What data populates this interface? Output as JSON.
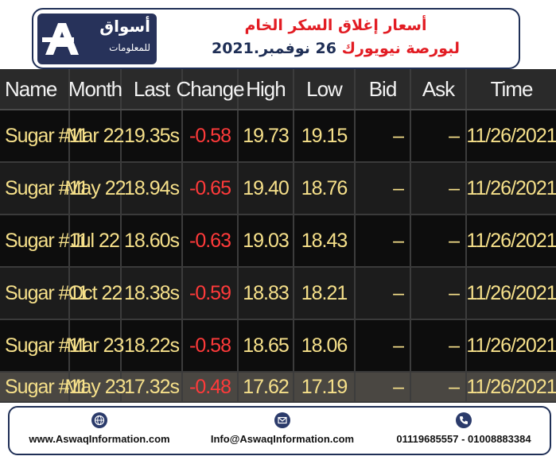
{
  "header": {
    "logo_text": "أسواق",
    "logo_sub": "للمعلومات",
    "title_line1": "أسعار إغلاق السكر الخام",
    "title_line2_red": "لبورصة نيويورك",
    "title_line2_navy": "26 نوفمبر.2021"
  },
  "table": {
    "headers": [
      "Name",
      "Month",
      "Last",
      "Change",
      "High",
      "Low",
      "Bid",
      "Ask",
      "Time"
    ],
    "rows": [
      {
        "name": "Sugar #11",
        "month": "Mar 22",
        "last": "19.35s",
        "change": "-0.58",
        "high": "19.73",
        "low": "19.15",
        "bid": "–",
        "ask": "–",
        "time": "11/26/2021"
      },
      {
        "name": "Sugar #11",
        "month": "May 22",
        "last": "18.94s",
        "change": "-0.65",
        "high": "19.40",
        "low": "18.76",
        "bid": "–",
        "ask": "–",
        "time": "11/26/2021"
      },
      {
        "name": "Sugar #11",
        "month": "Jul 22",
        "last": "18.60s",
        "change": "-0.63",
        "high": "19.03",
        "low": "18.43",
        "bid": "–",
        "ask": "–",
        "time": "11/26/2021"
      },
      {
        "name": "Sugar #11",
        "month": "Oct 22",
        "last": "18.38s",
        "change": "-0.59",
        "high": "18.83",
        "low": "18.21",
        "bid": "–",
        "ask": "–",
        "time": "11/26/2021"
      },
      {
        "name": "Sugar #11",
        "month": "Mar 23",
        "last": "18.22s",
        "change": "-0.58",
        "high": "18.65",
        "low": "18.06",
        "bid": "–",
        "ask": "–",
        "time": "11/26/2021"
      },
      {
        "name": "Sugar #11",
        "month": "May 23",
        "last": "17.32s",
        "change": "-0.48",
        "high": "17.62",
        "low": "17.19",
        "bid": "–",
        "ask": "–",
        "time": "11/26/2021"
      }
    ]
  },
  "footer": {
    "website": "www.AswaqInformation.com",
    "email": "Info@AswaqInformation.com",
    "phones": "01119685557 - 01008883384",
    "icons": [
      "globe-icon",
      "mail-icon",
      "phone-icon"
    ]
  },
  "colors": {
    "navy": "#27325a",
    "title_red": "#e21c23",
    "value_yellow": "#f6e08a",
    "change_red": "#ff3a3a"
  }
}
